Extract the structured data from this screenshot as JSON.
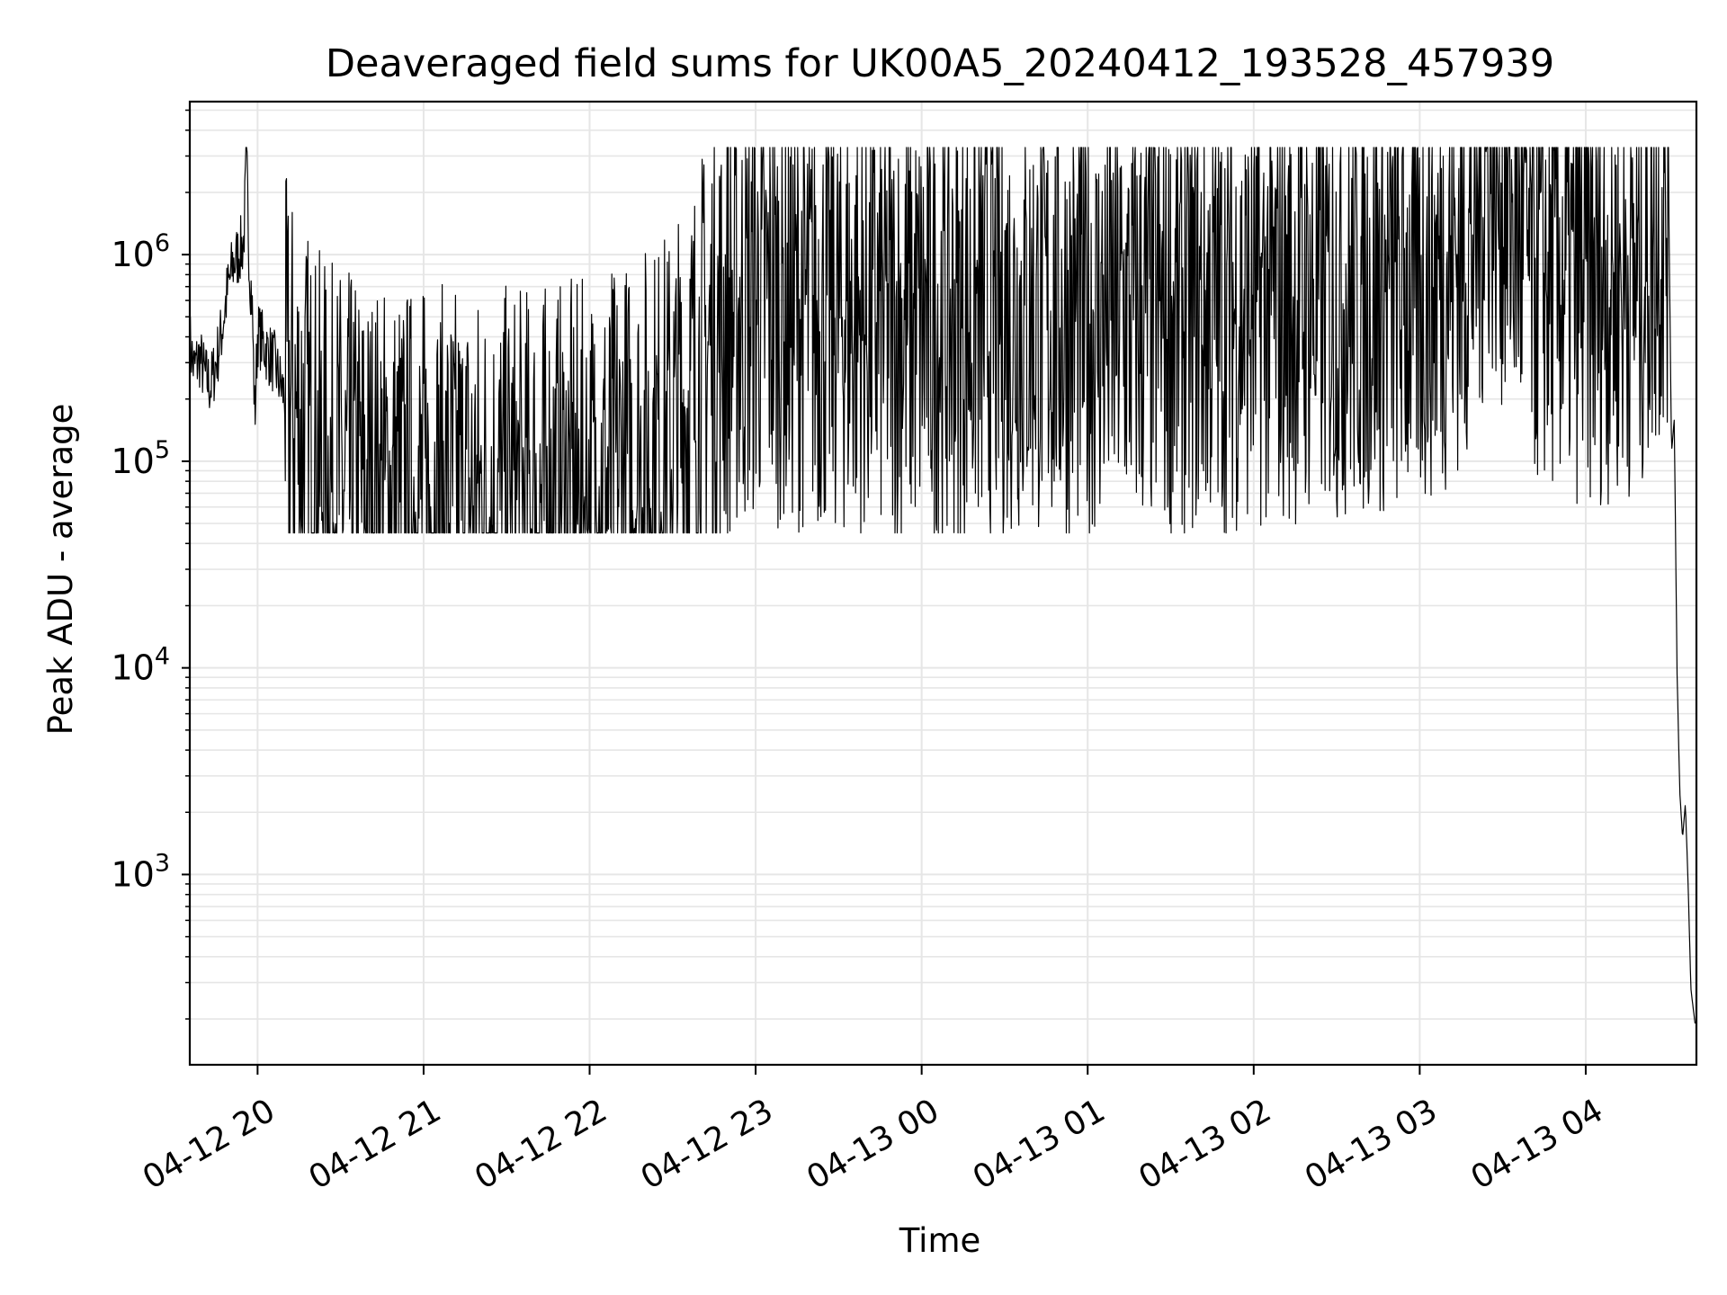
{
  "chart_data": {
    "type": "line",
    "title": "Deaveraged field sums for UK00A5_20240412_193528_457939",
    "xlabel": "Time",
    "ylabel": "Peak ADU - average",
    "yscale": "log",
    "ylim": [
      120,
      5500000
    ],
    "xlim": [
      "2024-04-12 19:35:30",
      "2024-04-13 04:40:00"
    ],
    "grid": true,
    "line_color": "#000000",
    "grid_color": "#e6e6e6",
    "x_ticks": [
      {
        "t": "2024-04-12 20:00",
        "label": "04-12 20"
      },
      {
        "t": "2024-04-12 21:00",
        "label": "04-12 21"
      },
      {
        "t": "2024-04-12 22:00",
        "label": "04-12 22"
      },
      {
        "t": "2024-04-12 23:00",
        "label": "04-12 23"
      },
      {
        "t": "2024-04-13 00:00",
        "label": "04-13 00"
      },
      {
        "t": "2024-04-13 01:00",
        "label": "04-13 01"
      },
      {
        "t": "2024-04-13 02:00",
        "label": "04-13 02"
      },
      {
        "t": "2024-04-13 03:00",
        "label": "04-13 03"
      },
      {
        "t": "2024-04-13 04:00",
        "label": "04-13 04"
      }
    ],
    "y_ticks": [
      {
        "value": 1000,
        "base": "10",
        "exp": "3"
      },
      {
        "value": 10000,
        "base": "10",
        "exp": "4"
      },
      {
        "value": 100000,
        "base": "10",
        "exp": "5"
      },
      {
        "value": 1000000,
        "base": "10",
        "exp": "6"
      }
    ],
    "series": [
      {
        "values_note_free": true,
        "points": [
          [
            "2024-04-12 19:35:30",
            380000
          ],
          [
            "2024-04-12 19:37:00",
            280000
          ],
          [
            "2024-04-12 19:39:00",
            320000
          ],
          [
            "2024-04-12 19:41:00",
            260000
          ],
          [
            "2024-04-12 19:43:00",
            230000
          ],
          [
            "2024-04-12 19:45:00",
            300000
          ],
          [
            "2024-04-12 19:47:00",
            420000
          ],
          [
            "2024-04-12 19:49:00",
            650000
          ],
          [
            "2024-04-12 19:51:00",
            880000
          ],
          [
            "2024-04-12 19:53:00",
            1000000
          ],
          [
            "2024-04-12 19:55:00",
            1150000
          ],
          [
            "2024-04-12 19:56:00",
            3000000
          ],
          [
            "2024-04-12 19:57:00",
            900000
          ],
          [
            "2024-04-12 19:58:00",
            600000
          ],
          [
            "2024-04-12 19:59:00",
            160000
          ],
          [
            "2024-04-12 20:00:00",
            420000
          ],
          [
            "2024-04-12 20:03:00",
            350000
          ],
          [
            "2024-04-12 20:06:00",
            300000
          ],
          [
            "2024-04-12 20:09:00",
            220000
          ],
          [
            "2024-04-12 20:12:00",
            180000
          ],
          [
            "2024-04-12 20:15:00",
            150000
          ],
          [
            "2024-04-12 20:18:00",
            120000
          ],
          [
            "2024-04-12 20:21:00",
            95000
          ],
          [
            "2024-04-12 20:25:00",
            80000
          ],
          [
            "2024-04-12 20:30:00",
            75000
          ],
          [
            "2024-04-12 20:40:00",
            65000
          ],
          [
            "2024-04-12 21:00:00",
            62000
          ],
          [
            "2024-04-12 21:30:00",
            60000
          ],
          [
            "2024-04-12 22:00:00",
            65000
          ],
          [
            "2024-04-12 22:30:00",
            120000
          ],
          [
            "2024-04-12 22:45:00",
            400000
          ],
          [
            "2024-04-12 23:00:00",
            600000
          ],
          [
            "2024-04-12 23:30:00",
            500000
          ],
          [
            "2024-04-13 00:00:00",
            450000
          ],
          [
            "2024-04-13 00:30:00",
            500000
          ],
          [
            "2024-04-13 01:00:00",
            480000
          ],
          [
            "2024-04-13 01:30:00",
            500000
          ],
          [
            "2024-04-13 02:00:00",
            550000
          ],
          [
            "2024-04-13 02:30:00",
            600000
          ],
          [
            "2024-04-13 03:00:00",
            650000
          ],
          [
            "2024-04-13 03:20:00",
            1200000
          ],
          [
            "2024-04-13 03:25:00",
            3200000
          ],
          [
            "2024-04-13 03:40:00",
            900000
          ],
          [
            "2024-04-13 04:00:00",
            700000
          ],
          [
            "2024-04-13 04:20:00",
            800000
          ],
          [
            "2024-04-13 04:28:00",
            1500000
          ],
          [
            "2024-04-13 04:30:00",
            1800000
          ],
          [
            "2024-04-13 04:31:00",
            110000
          ],
          [
            "2024-04-13 04:32:00",
            160000
          ],
          [
            "2024-04-13 04:33:00",
            9500
          ],
          [
            "2024-04-13 04:34:00",
            2500
          ],
          [
            "2024-04-13 04:35:00",
            1500
          ],
          [
            "2024-04-13 04:36:00",
            2200
          ],
          [
            "2024-04-13 04:37:00",
            900
          ],
          [
            "2024-04-13 04:38:00",
            280
          ],
          [
            "2024-04-13 04:39:30",
            190
          ]
        ]
      }
    ]
  }
}
